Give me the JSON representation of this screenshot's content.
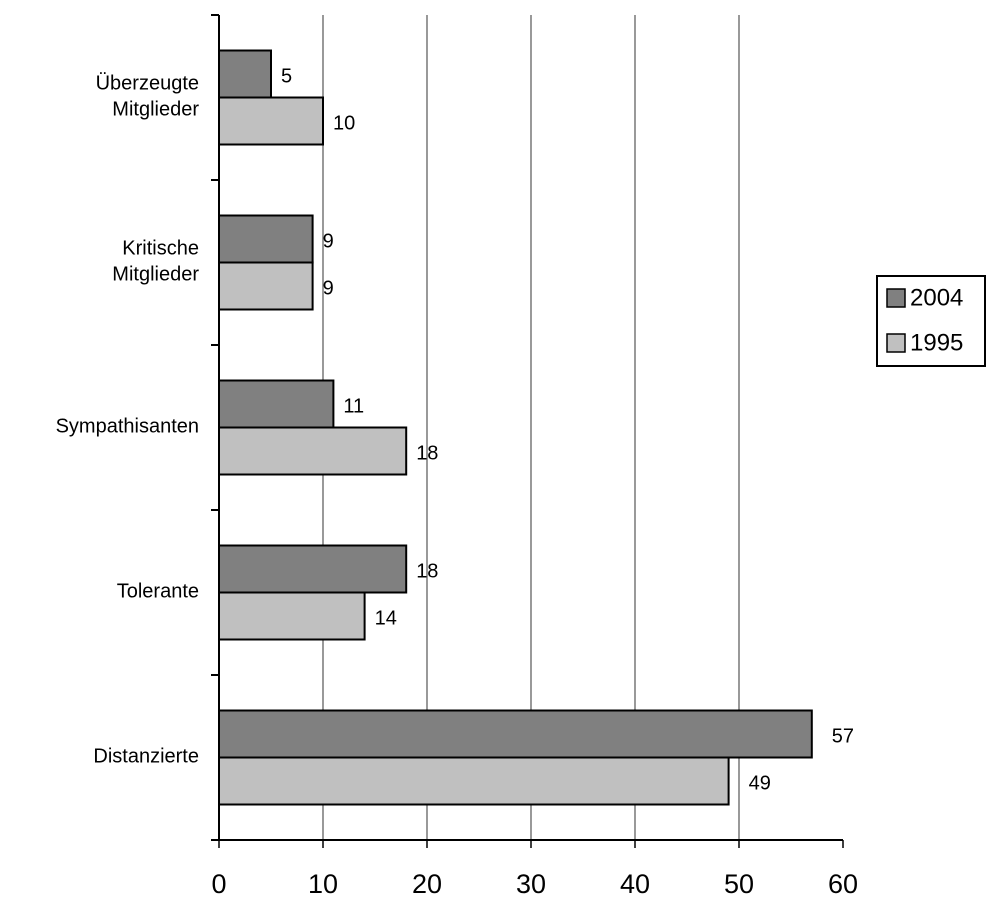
{
  "chart_data": {
    "type": "barh",
    "categories": [
      "Überzeugte\nMitglieder",
      "Kritische\nMitglieder",
      "Sympathisanten",
      "Tolerante",
      "Distanzierte"
    ],
    "series": [
      {
        "name": "2004",
        "color": "#808080",
        "values": [
          5,
          9,
          11,
          18,
          57
        ]
      },
      {
        "name": "1995",
        "color": "#c0c0c0",
        "values": [
          10,
          9,
          18,
          14,
          49
        ]
      }
    ],
    "xlim": [
      0,
      60
    ],
    "xticks": [
      0,
      10,
      20,
      30,
      40,
      50,
      60
    ],
    "grid": true,
    "legend": "right"
  }
}
